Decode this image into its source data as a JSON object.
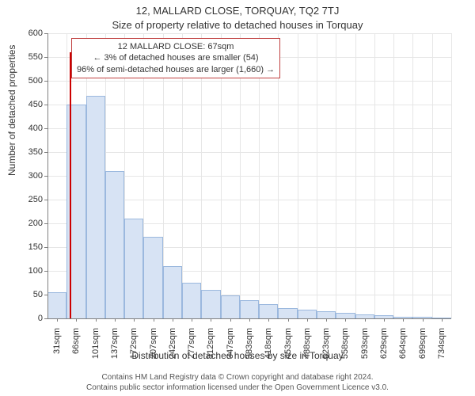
{
  "title_main": "12, MALLARD CLOSE, TORQUAY, TQ2 7TJ",
  "title_sub": "Size of property relative to detached houses in Torquay",
  "ylabel": "Number of detached properties",
  "xlabel": "Distribution of detached houses by size in Torquay",
  "chart": {
    "type": "histogram",
    "ylim": [
      0,
      600
    ],
    "ytick_step": 50,
    "xticks": [
      "31sqm",
      "66sqm",
      "101sqm",
      "137sqm",
      "172sqm",
      "207sqm",
      "242sqm",
      "277sqm",
      "312sqm",
      "347sqm",
      "383sqm",
      "418sqm",
      "453sqm",
      "488sqm",
      "523sqm",
      "558sqm",
      "593sqm",
      "629sqm",
      "664sqm",
      "699sqm",
      "734sqm"
    ],
    "bars": [
      55,
      450,
      468,
      310,
      210,
      172,
      110,
      75,
      60,
      48,
      38,
      30,
      22,
      18,
      15,
      12,
      8,
      6,
      4,
      3,
      2
    ],
    "bar_fill": "#d7e3f4",
    "bar_stroke": "#9bb8de",
    "background_color": "#ffffff",
    "grid_color": "#e6e6e6",
    "axis_color": "#808080",
    "marker_color": "#cc0000",
    "marker_height": 560,
    "marker_index": 1
  },
  "annotation": {
    "line1": "12 MALLARD CLOSE: 67sqm",
    "line2": "← 3% of detached houses are smaller (54)",
    "line3": "96% of semi-detached houses are larger (1,660) →",
    "border_color": "#c04040"
  },
  "footer": {
    "line1": "Contains HM Land Registry data © Crown copyright and database right 2024.",
    "line2": "Contains public sector information licensed under the Open Government Licence v3.0."
  },
  "fonts": {
    "title_size": 13,
    "label_size": 12,
    "tick_size": 11,
    "annotation_size": 11,
    "footer_size": 10
  }
}
